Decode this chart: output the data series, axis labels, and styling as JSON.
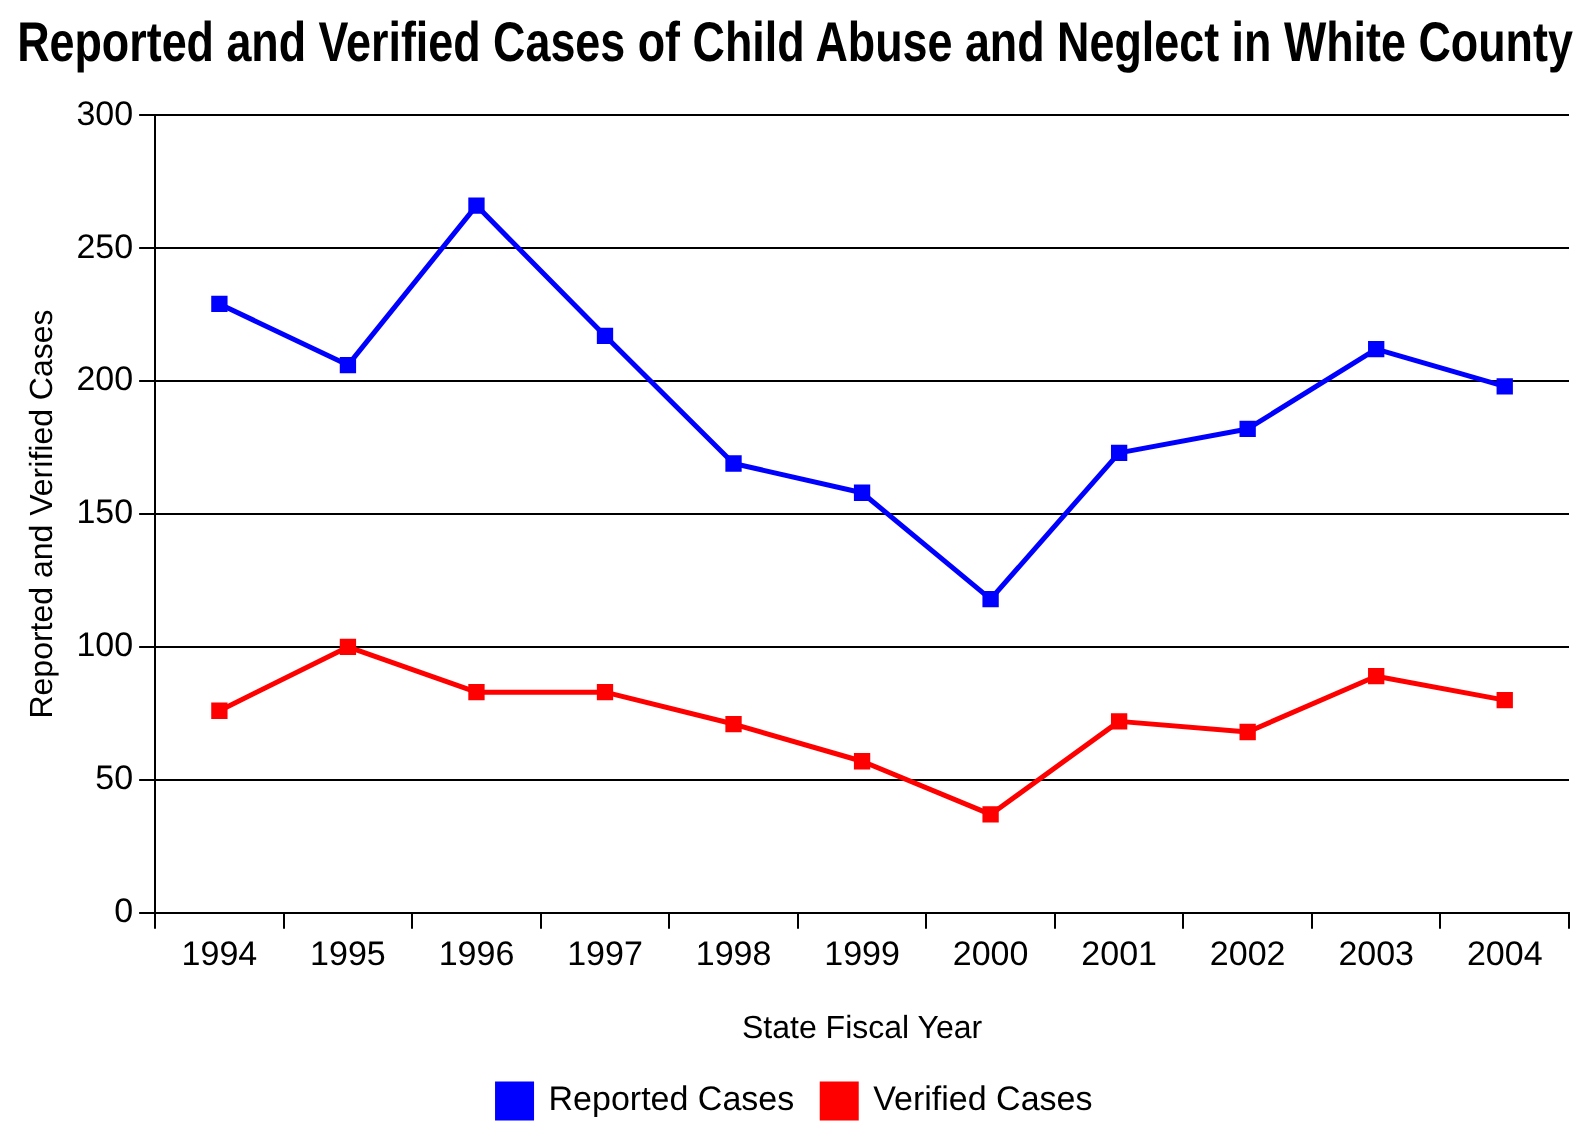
{
  "chart_data": {
    "type": "line",
    "title": "Reported and Verified Cases of Child Abuse and Neglect in White County",
    "xlabel": "State Fiscal Year",
    "ylabel": "Reported and Verified Cases",
    "categories": [
      "1994",
      "1995",
      "1996",
      "1997",
      "1998",
      "1999",
      "2000",
      "2001",
      "2002",
      "2003",
      "2004"
    ],
    "series": [
      {
        "name": "Reported Cases",
        "color": "#0000ff",
        "values": [
          229,
          206,
          266,
          217,
          169,
          158,
          118,
          173,
          182,
          212,
          198
        ]
      },
      {
        "name": "Verified Cases",
        "color": "#ff0000",
        "values": [
          76,
          100,
          83,
          83,
          71,
          57,
          37,
          72,
          68,
          89,
          80
        ]
      }
    ],
    "ylim": [
      0,
      300
    ],
    "yticks": [
      0,
      50,
      100,
      150,
      200,
      250,
      300
    ],
    "grid": "y",
    "legend": "bottom",
    "marker": "square",
    "line_style": "solid"
  }
}
